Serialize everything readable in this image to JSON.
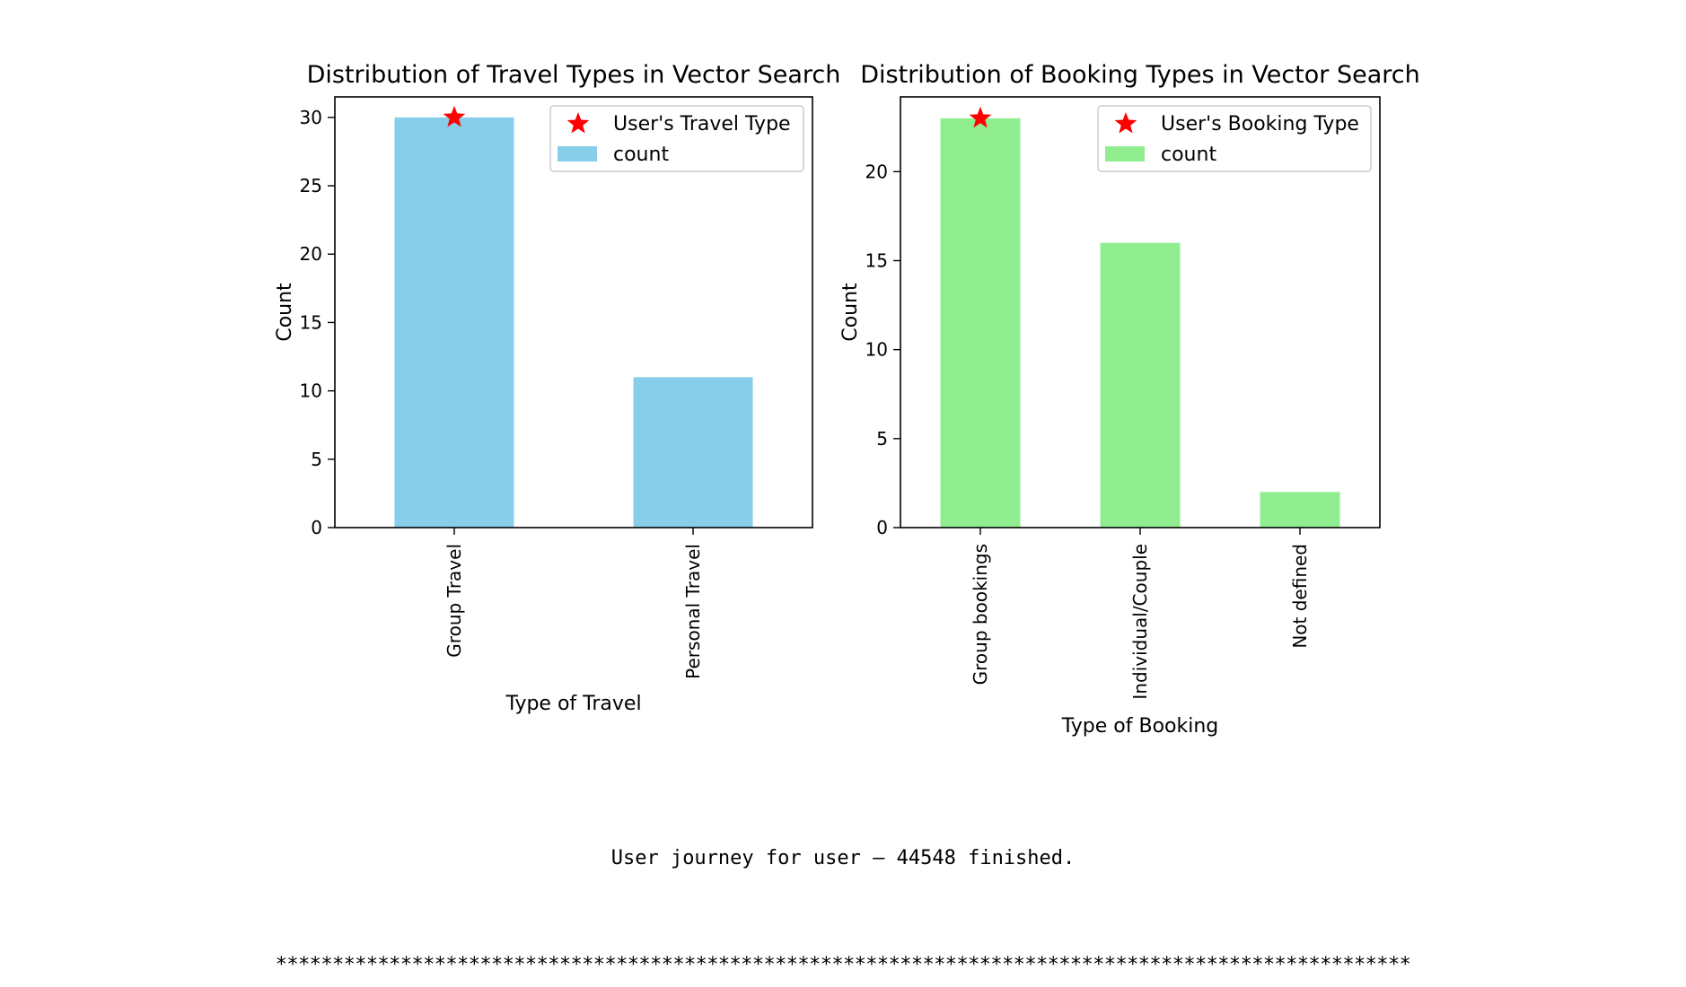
{
  "chart_data": [
    {
      "type": "bar",
      "title": "Distribution of Travel Types in Vector Search",
      "xlabel": "Type of Travel",
      "ylabel": "Count",
      "categories": [
        "Group Travel",
        "Personal Travel"
      ],
      "series": [
        {
          "name": "count",
          "values": [
            30,
            11
          ],
          "color": "#87CEEB"
        }
      ],
      "highlight": {
        "label": "User's Travel Type",
        "category": "Group Travel",
        "value": 30,
        "marker": "star",
        "color": "#FF0000"
      },
      "ylim": [
        0,
        31.5
      ],
      "yticks": [
        0,
        5,
        10,
        15,
        20,
        25,
        30
      ],
      "grid": false,
      "legend": "top-right"
    },
    {
      "type": "bar",
      "title": "Distribution of Booking Types in Vector Search",
      "xlabel": "Type of Booking",
      "ylabel": "Count",
      "categories": [
        "Group bookings",
        "Individual/Couple",
        "Not defined"
      ],
      "series": [
        {
          "name": "count",
          "values": [
            23,
            16,
            2
          ],
          "color": "#90EE90"
        }
      ],
      "highlight": {
        "label": "User's Booking Type",
        "category": "Group bookings",
        "value": 23,
        "marker": "star",
        "color": "#FF0000"
      },
      "ylim": [
        0,
        24.2
      ],
      "yticks": [
        0,
        5,
        10,
        15,
        20
      ],
      "grid": false,
      "legend": "top-right"
    }
  ],
  "output": {
    "message": "User journey for user – 44548 finished.",
    "separator": "****************************************************************************************************"
  }
}
